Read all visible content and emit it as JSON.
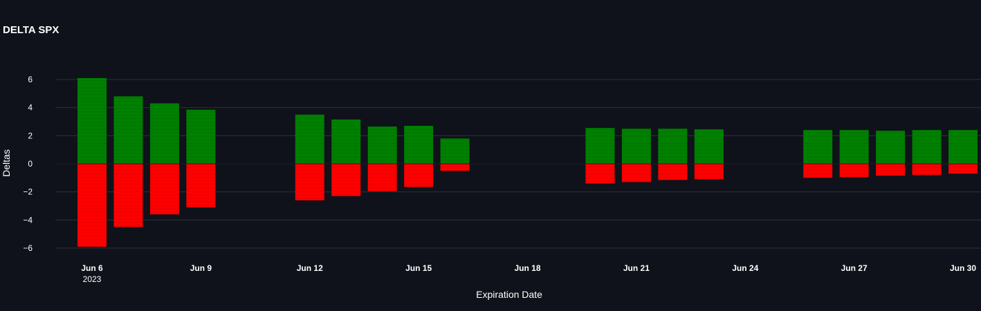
{
  "chart_data": {
    "type": "bar",
    "title": "DELTA SPX",
    "xlabel": "Expiration Date",
    "ylabel": "Deltas",
    "ylim": [
      -6.5,
      6.5
    ],
    "y_ticks": [
      6,
      4,
      2,
      0,
      -2,
      -4,
      -6
    ],
    "y_tick_labels": [
      "6",
      "4",
      "2",
      "0",
      "−2",
      "−4",
      "−6"
    ],
    "x_range": [
      "2023-06-04",
      "2023-06-30"
    ],
    "x_ticks": [
      {
        "date": "2023-06-06",
        "label": "Jun 6",
        "sublabel": "2023"
      },
      {
        "date": "2023-06-09",
        "label": "Jun 9",
        "sublabel": ""
      },
      {
        "date": "2023-06-12",
        "label": "Jun 12",
        "sublabel": ""
      },
      {
        "date": "2023-06-15",
        "label": "Jun 15",
        "sublabel": ""
      },
      {
        "date": "2023-06-18",
        "label": "Jun 18",
        "sublabel": ""
      },
      {
        "date": "2023-06-21",
        "label": "Jun 21",
        "sublabel": ""
      },
      {
        "date": "2023-06-24",
        "label": "Jun 24",
        "sublabel": ""
      },
      {
        "date": "2023-06-27",
        "label": "Jun 27",
        "sublabel": ""
      },
      {
        "date": "2023-06-30",
        "label": "Jun 30",
        "sublabel": ""
      }
    ],
    "bar_mode": "relative",
    "grid": true,
    "colors": {
      "positive": "#008000",
      "negative": "#ff0000",
      "background": "#0f121a",
      "grid": "#2c3039",
      "text": "#ffffff"
    },
    "x": [
      "2023-06-06",
      "2023-06-07",
      "2023-06-08",
      "2023-06-09",
      "2023-06-12",
      "2023-06-13",
      "2023-06-14",
      "2023-06-15",
      "2023-06-16",
      "2023-06-20",
      "2023-06-21",
      "2023-06-22",
      "2023-06-23",
      "2023-06-26",
      "2023-06-27",
      "2023-06-28",
      "2023-06-29",
      "2023-06-30"
    ],
    "series": [
      {
        "values": [
          6.1,
          4.8,
          4.3,
          3.85,
          3.5,
          3.15,
          2.65,
          2.7,
          1.8,
          2.55,
          2.5,
          2.5,
          2.45,
          2.4,
          2.4,
          2.35,
          2.4,
          2.4
        ]
      },
      {
        "values": [
          -5.9,
          -4.5,
          -3.6,
          -3.1,
          -2.6,
          -2.3,
          -1.95,
          -1.65,
          -0.5,
          -1.4,
          -1.3,
          -1.15,
          -1.1,
          -1.0,
          -0.95,
          -0.85,
          -0.8,
          -0.7
        ]
      }
    ]
  }
}
